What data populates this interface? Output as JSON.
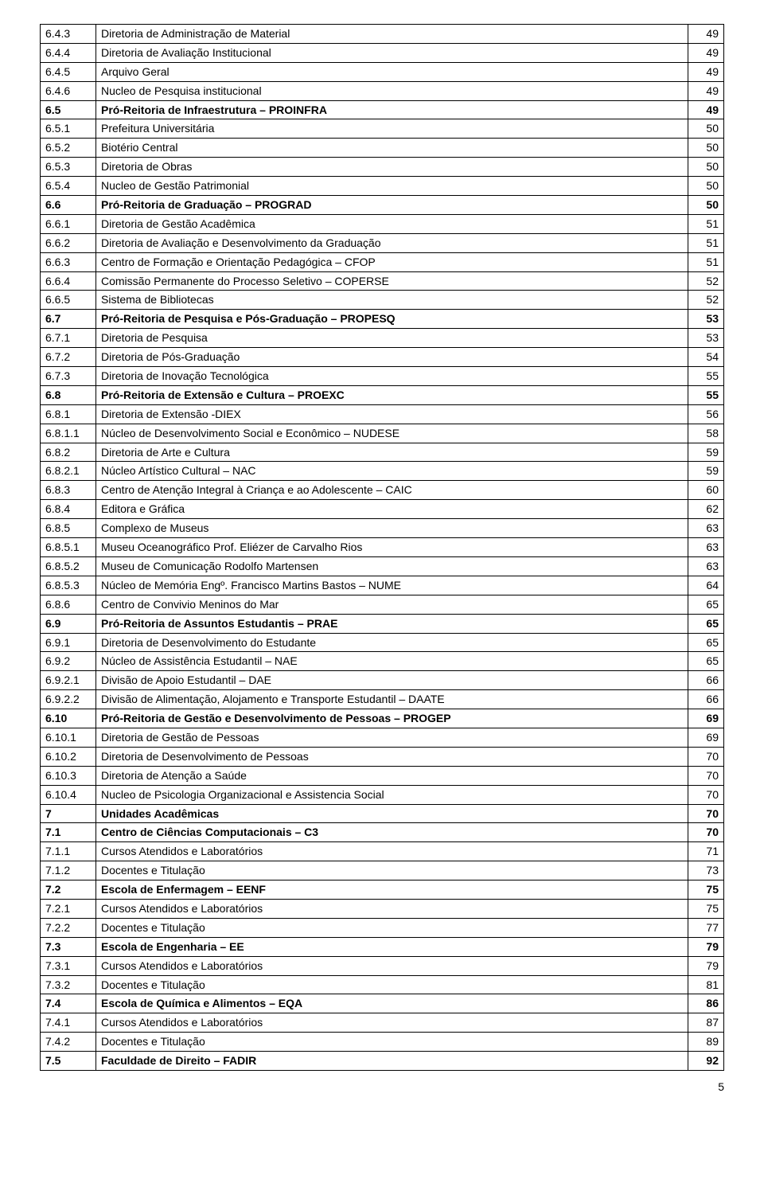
{
  "table": {
    "rows": [
      {
        "num": "6.4.3",
        "title": "Diretoria  de Administração de Material",
        "page": "49",
        "bold": false
      },
      {
        "num": "6.4.4",
        "title": "Diretoria de Avaliação Institucional",
        "page": "49",
        "bold": false
      },
      {
        "num": "6.4.5",
        "title": "Arquivo Geral",
        "page": "49",
        "bold": false
      },
      {
        "num": "6.4.6",
        "title": "Nucleo de Pesquisa institucional",
        "page": "49",
        "bold": false
      },
      {
        "num": "6.5",
        "title": "Pró-Reitoria de Infraestrutura – PROINFRA",
        "page": "49",
        "bold": true
      },
      {
        "num": "6.5.1",
        "title": "Prefeitura Universitária",
        "page": "50",
        "bold": false
      },
      {
        "num": "6.5.2",
        "title": "Biotério Central",
        "page": "50",
        "bold": false
      },
      {
        "num": "6.5.3",
        "title": "Diretoria de Obras",
        "page": "50",
        "bold": false
      },
      {
        "num": "6.5.4",
        "title": "Nucleo de Gestão Patrimonial",
        "page": "50",
        "bold": false
      },
      {
        "num": "6.6",
        "title": "Pró-Reitoria de Graduação – PROGRAD",
        "page": "50",
        "bold": true
      },
      {
        "num": "6.6.1",
        "title": "Diretoria de Gestão Acadêmica",
        "page": "51",
        "bold": false
      },
      {
        "num": "6.6.2",
        "title": "Diretoria de Avaliação e Desenvolvimento da Graduação",
        "page": "51",
        "bold": false
      },
      {
        "num": "6.6.3",
        "title": "Centro de Formação e Orientação Pedagógica – CFOP",
        "page": "51",
        "bold": false
      },
      {
        "num": "6.6.4",
        "title": "Comissão Permanente do Processo  Seletivo – COPERSE",
        "page": "52",
        "bold": false
      },
      {
        "num": "6.6.5",
        "title": "Sistema de Bibliotecas",
        "page": "52",
        "bold": false
      },
      {
        "num": "6.7",
        "title": "Pró-Reitoria de Pesquisa e Pós-Graduação – PROPESQ",
        "page": "53",
        "bold": true
      },
      {
        "num": "6.7.1",
        "title": "Diretoria de Pesquisa",
        "page": "53",
        "bold": false
      },
      {
        "num": "6.7.2",
        "title": "Diretoria  de Pós-Graduação",
        "page": "54",
        "bold": false
      },
      {
        "num": "6.7.3",
        "title": "Diretoria de Inovação Tecnológica",
        "page": "55",
        "bold": false
      },
      {
        "num": "6.8",
        "title": "Pró-Reitoria de Extensão e Cultura – PROEXC",
        "page": "55",
        "bold": true
      },
      {
        "num": "6.8.1",
        "title": "Diretoria de Extensão -DIEX",
        "page": "56",
        "bold": false
      },
      {
        "num": "6.8.1.1",
        "title": "Núcleo de Desenvolvimento Social e Econômico – NUDESE",
        "page": "58",
        "bold": false
      },
      {
        "num": "6.8.2",
        "title": "Diretoria de Arte e Cultura",
        "page": "59",
        "bold": false
      },
      {
        "num": "6.8.2.1",
        "title": "Núcleo Artístico Cultural – NAC",
        "page": "59",
        "bold": false
      },
      {
        "num": "6.8.3",
        "title": "Centro de Atenção Integral à Criança e ao Adolescente – CAIC",
        "page": "60",
        "bold": false
      },
      {
        "num": "6.8.4",
        "title": "Editora e Gráfica",
        "page": "62",
        "bold": false
      },
      {
        "num": "6.8.5",
        "title": "Complexo de Museus",
        "page": "63",
        "bold": false
      },
      {
        "num": "6.8.5.1",
        "title": "Museu Oceanográfico Prof. Eliézer de Carvalho Rios",
        "page": "63",
        "bold": false
      },
      {
        "num": "6.8.5.2",
        "title": "Museu de Comunicação Rodolfo Martensen",
        "page": "63",
        "bold": false
      },
      {
        "num": "6.8.5.3",
        "title": "Núcleo de Memória Engº. Francisco Martins Bastos – NUME",
        "page": "64",
        "bold": false
      },
      {
        "num": "6.8.6",
        "title": "Centro de Convivio Meninos do Mar",
        "page": "65",
        "bold": false
      },
      {
        "num": "6.9",
        "title": "Pró-Reitoria de Assuntos Estudantis – PRAE",
        "page": "65",
        "bold": true
      },
      {
        "num": "6.9.1",
        "title": "Diretoria de Desenvolvimento do Estudante",
        "page": "65",
        "bold": false
      },
      {
        "num": "6.9.2",
        "title": "Núcleo de Assistência Estudantil – NAE",
        "page": "65",
        "bold": false
      },
      {
        "num": "6.9.2.1",
        "title": "Divisão de Apoio Estudantil – DAE",
        "page": "66",
        "bold": false
      },
      {
        "num": "6.9.2.2",
        "title": "Divisão de Alimentação, Alojamento e Transporte Estudantil – DAATE",
        "page": "66",
        "bold": false
      },
      {
        "num": "6.10",
        "title": "Pró-Reitoria de Gestão e Desenvolvimento de Pessoas – PROGEP",
        "page": "69",
        "bold": true
      },
      {
        "num": "6.10.1",
        "title": "Diretoria de Gestão de Pessoas",
        "page": "69",
        "bold": false
      },
      {
        "num": "6.10.2",
        "title": "Diretoria de Desenvolvimento de  Pessoas",
        "page": "70",
        "bold": false
      },
      {
        "num": "6.10.3",
        "title": "Diretoria de Atenção a Saúde",
        "page": "70",
        "bold": false
      },
      {
        "num": "6.10.4",
        "title": "Nucleo de Psicologia Organizacional e Assistencia Social",
        "page": "70",
        "bold": false
      },
      {
        "num": "7",
        "title": "Unidades Acadêmicas",
        "page": "70",
        "bold": true
      },
      {
        "num": "7.1",
        "title": "Centro de Ciências Computacionais – C3",
        "page": "70",
        "bold": true
      },
      {
        "num": "7.1.1",
        "title": "Cursos Atendidos e Laboratórios",
        "page": "71",
        "bold": false
      },
      {
        "num": "7.1.2",
        "title": "Docentes e Titulação",
        "page": "73",
        "bold": false
      },
      {
        "num": "7.2",
        "title": "Escola de Enfermagem – EENF",
        "page": "75",
        "bold": true
      },
      {
        "num": "7.2.1",
        "title": "Cursos Atendidos e Laboratórios",
        "page": "75",
        "bold": false
      },
      {
        "num": "7.2.2",
        "title": "Docentes e Titulação",
        "page": "77",
        "bold": false
      },
      {
        "num": "7.3",
        "title": "Escola de Engenharia – EE",
        "page": "79",
        "bold": true
      },
      {
        "num": "7.3.1",
        "title": "Cursos Atendidos e Laboratórios",
        "page": "79",
        "bold": false
      },
      {
        "num": "7.3.2",
        "title": "Docentes e Titulação",
        "page": "81",
        "bold": false
      },
      {
        "num": "7.4",
        "title": "Escola de Química e Alimentos – EQA",
        "page": "86",
        "bold": true
      },
      {
        "num": "7.4.1",
        "title": "Cursos Atendidos e Laboratórios",
        "page": "87",
        "bold": false
      },
      {
        "num": "7.4.2",
        "title": "Docentes e Titulação",
        "page": "89",
        "bold": false
      },
      {
        "num": "7.5",
        "title": "Faculdade de Direito – FADIR",
        "page": "92",
        "bold": true
      }
    ]
  },
  "page_number": "5",
  "style": {
    "font_family": "Arial",
    "font_size_pt": 11,
    "text_color": "#000000",
    "background_color": "#ffffff",
    "border_color": "#000000",
    "col_widths": {
      "num": 70,
      "page": 45
    }
  }
}
